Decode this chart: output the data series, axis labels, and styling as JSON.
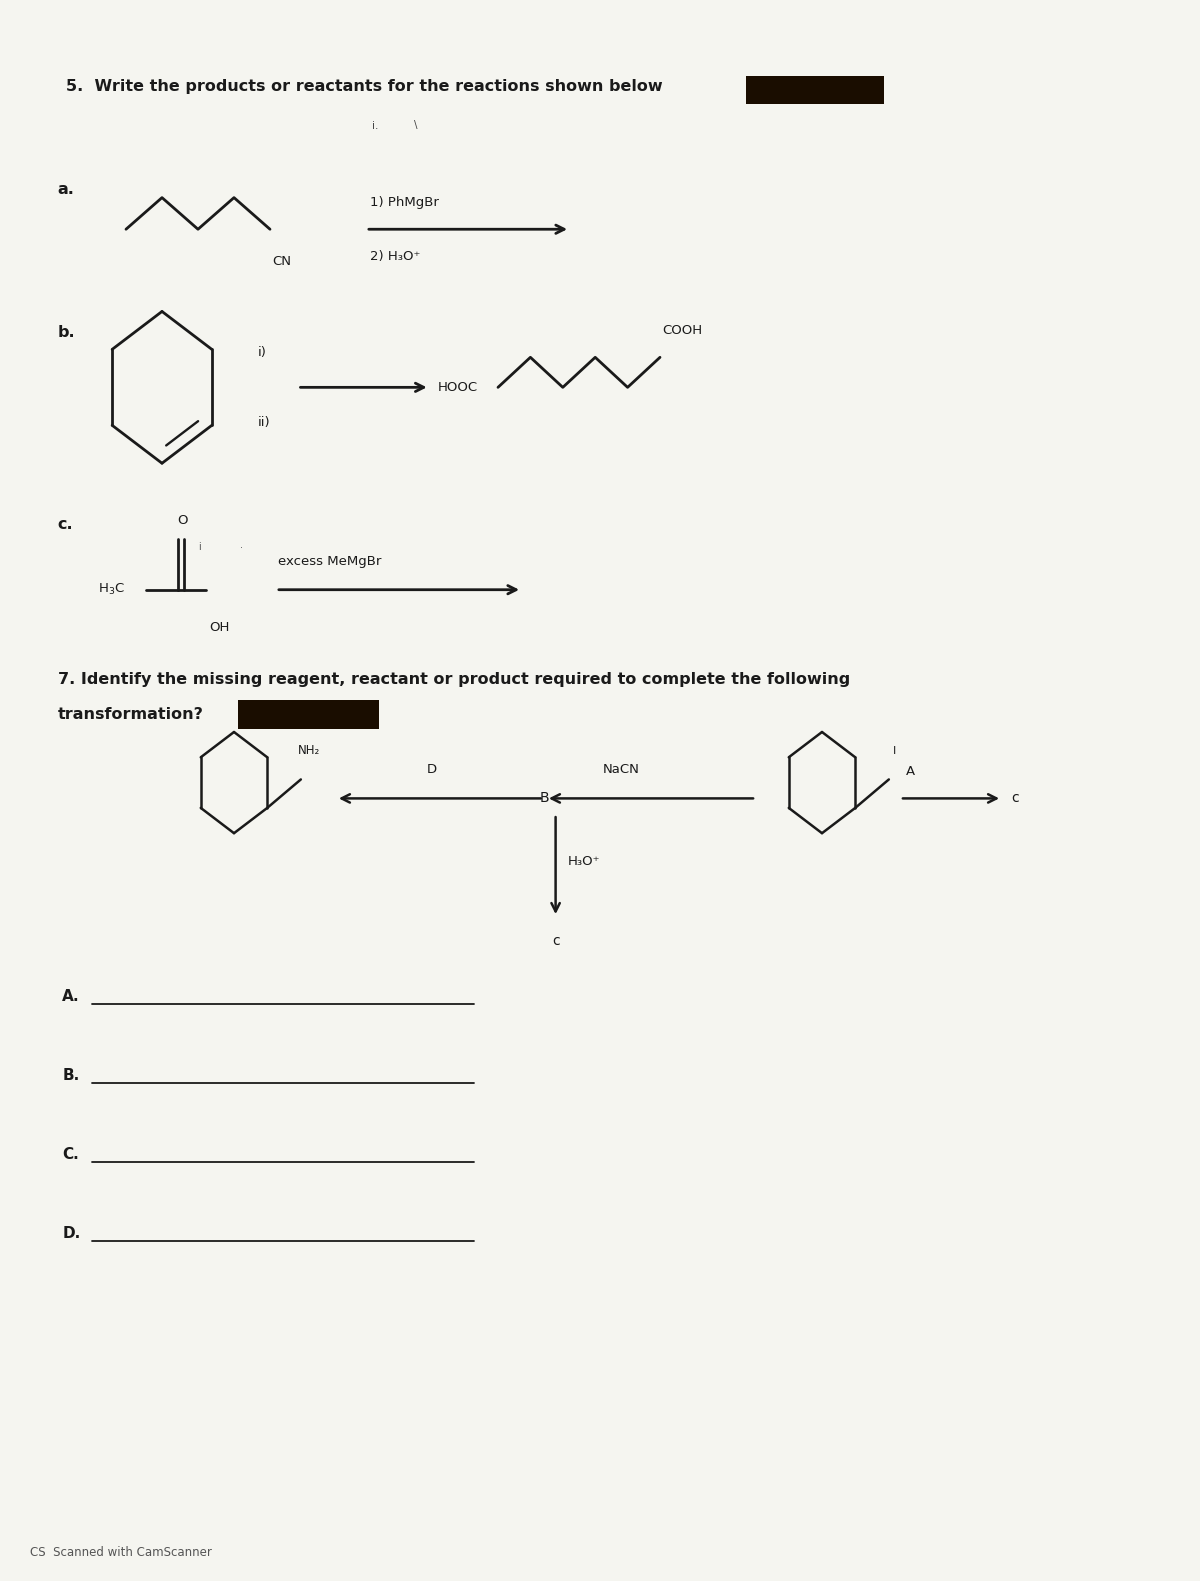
{
  "title5": "5.  Write the products or reactants for the reactions shown below",
  "title7_line1": "7. Identify the missing reagent, reactant or product required to complete the following",
  "title7_line2": "transformation?",
  "label_a": "a.",
  "label_b": "b.",
  "label_c": "c.",
  "reagent_a1": "1) PhMgBr",
  "reagent_a2": "2) H₃O⁺",
  "reagent_b_i": "i)",
  "reagent_b_ii": "ii)",
  "reagent_c": "excess MeMgBr",
  "hooc": "HOOC",
  "cooh": "COOH",
  "h3c": "H₃C",
  "oh": "OH",
  "cn": "CN",
  "label_A": "A.",
  "label_B": "B.",
  "label_C_ans": "C.",
  "label_D_ans": "D.",
  "q7_nacn": "NaCN",
  "q7_h3o": "H₃O⁺",
  "q7_A": "A",
  "q7_B": "B",
  "q7_C": "c",
  "q7_D": "D",
  "q7_nh2": "NH₂",
  "bg_color": "#f5f5f0",
  "text_color": "#1a1a1a",
  "redacted_color": "#1a0d00",
  "footer": "CS  Scanned with CamScanner",
  "fig_w": 12.0,
  "fig_h": 15.81,
  "dpi": 100
}
